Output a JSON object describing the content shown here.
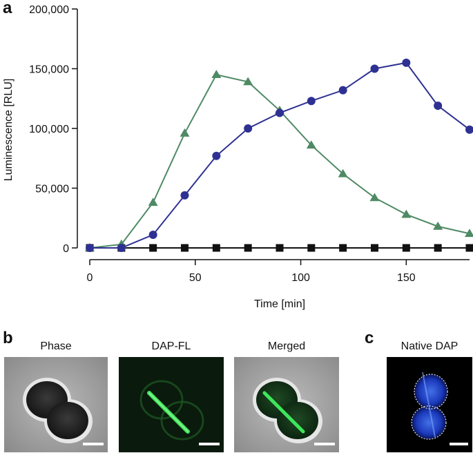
{
  "panel_letters": {
    "a": "a",
    "b": "b",
    "c": "c"
  },
  "chart_data": {
    "type": "line",
    "xlabel": "Time [min]",
    "ylabel": "Luminescence [RLU]",
    "xlim": [
      0,
      180
    ],
    "ylim": [
      0,
      200000
    ],
    "x_ticks": [
      0,
      50,
      100,
      150
    ],
    "x_tick_labels": [
      "0",
      "50",
      "100",
      "150"
    ],
    "y_ticks": [
      0,
      50000,
      100000,
      150000,
      200000
    ],
    "y_tick_labels": [
      "0",
      "50,000",
      "100,000",
      "150,000",
      "200,000"
    ],
    "grid": false,
    "x": [
      0,
      15,
      30,
      45,
      60,
      75,
      90,
      105,
      120,
      135,
      150,
      165,
      180
    ],
    "series": [
      {
        "marker": "triangle",
        "color": "#4e8a64",
        "values": [
          0,
          3000,
          38000,
          96000,
          145000,
          139000,
          115000,
          86000,
          62000,
          42000,
          28000,
          18000,
          12000
        ]
      },
      {
        "marker": "circle",
        "color": "#2e3192",
        "values": [
          0,
          0,
          11000,
          44000,
          77000,
          100000,
          113000,
          123000,
          132000,
          150000,
          155000,
          119000,
          99000
        ]
      },
      {
        "marker": "square",
        "color": "#111111",
        "values": [
          0,
          0,
          0,
          0,
          0,
          0,
          0,
          0,
          0,
          0,
          0,
          0,
          0
        ]
      }
    ]
  },
  "micrographs": {
    "phase_label": "Phase",
    "dapfl_label": "DAP-FL",
    "merged_label": "Merged",
    "native_label": "Native DAP"
  }
}
